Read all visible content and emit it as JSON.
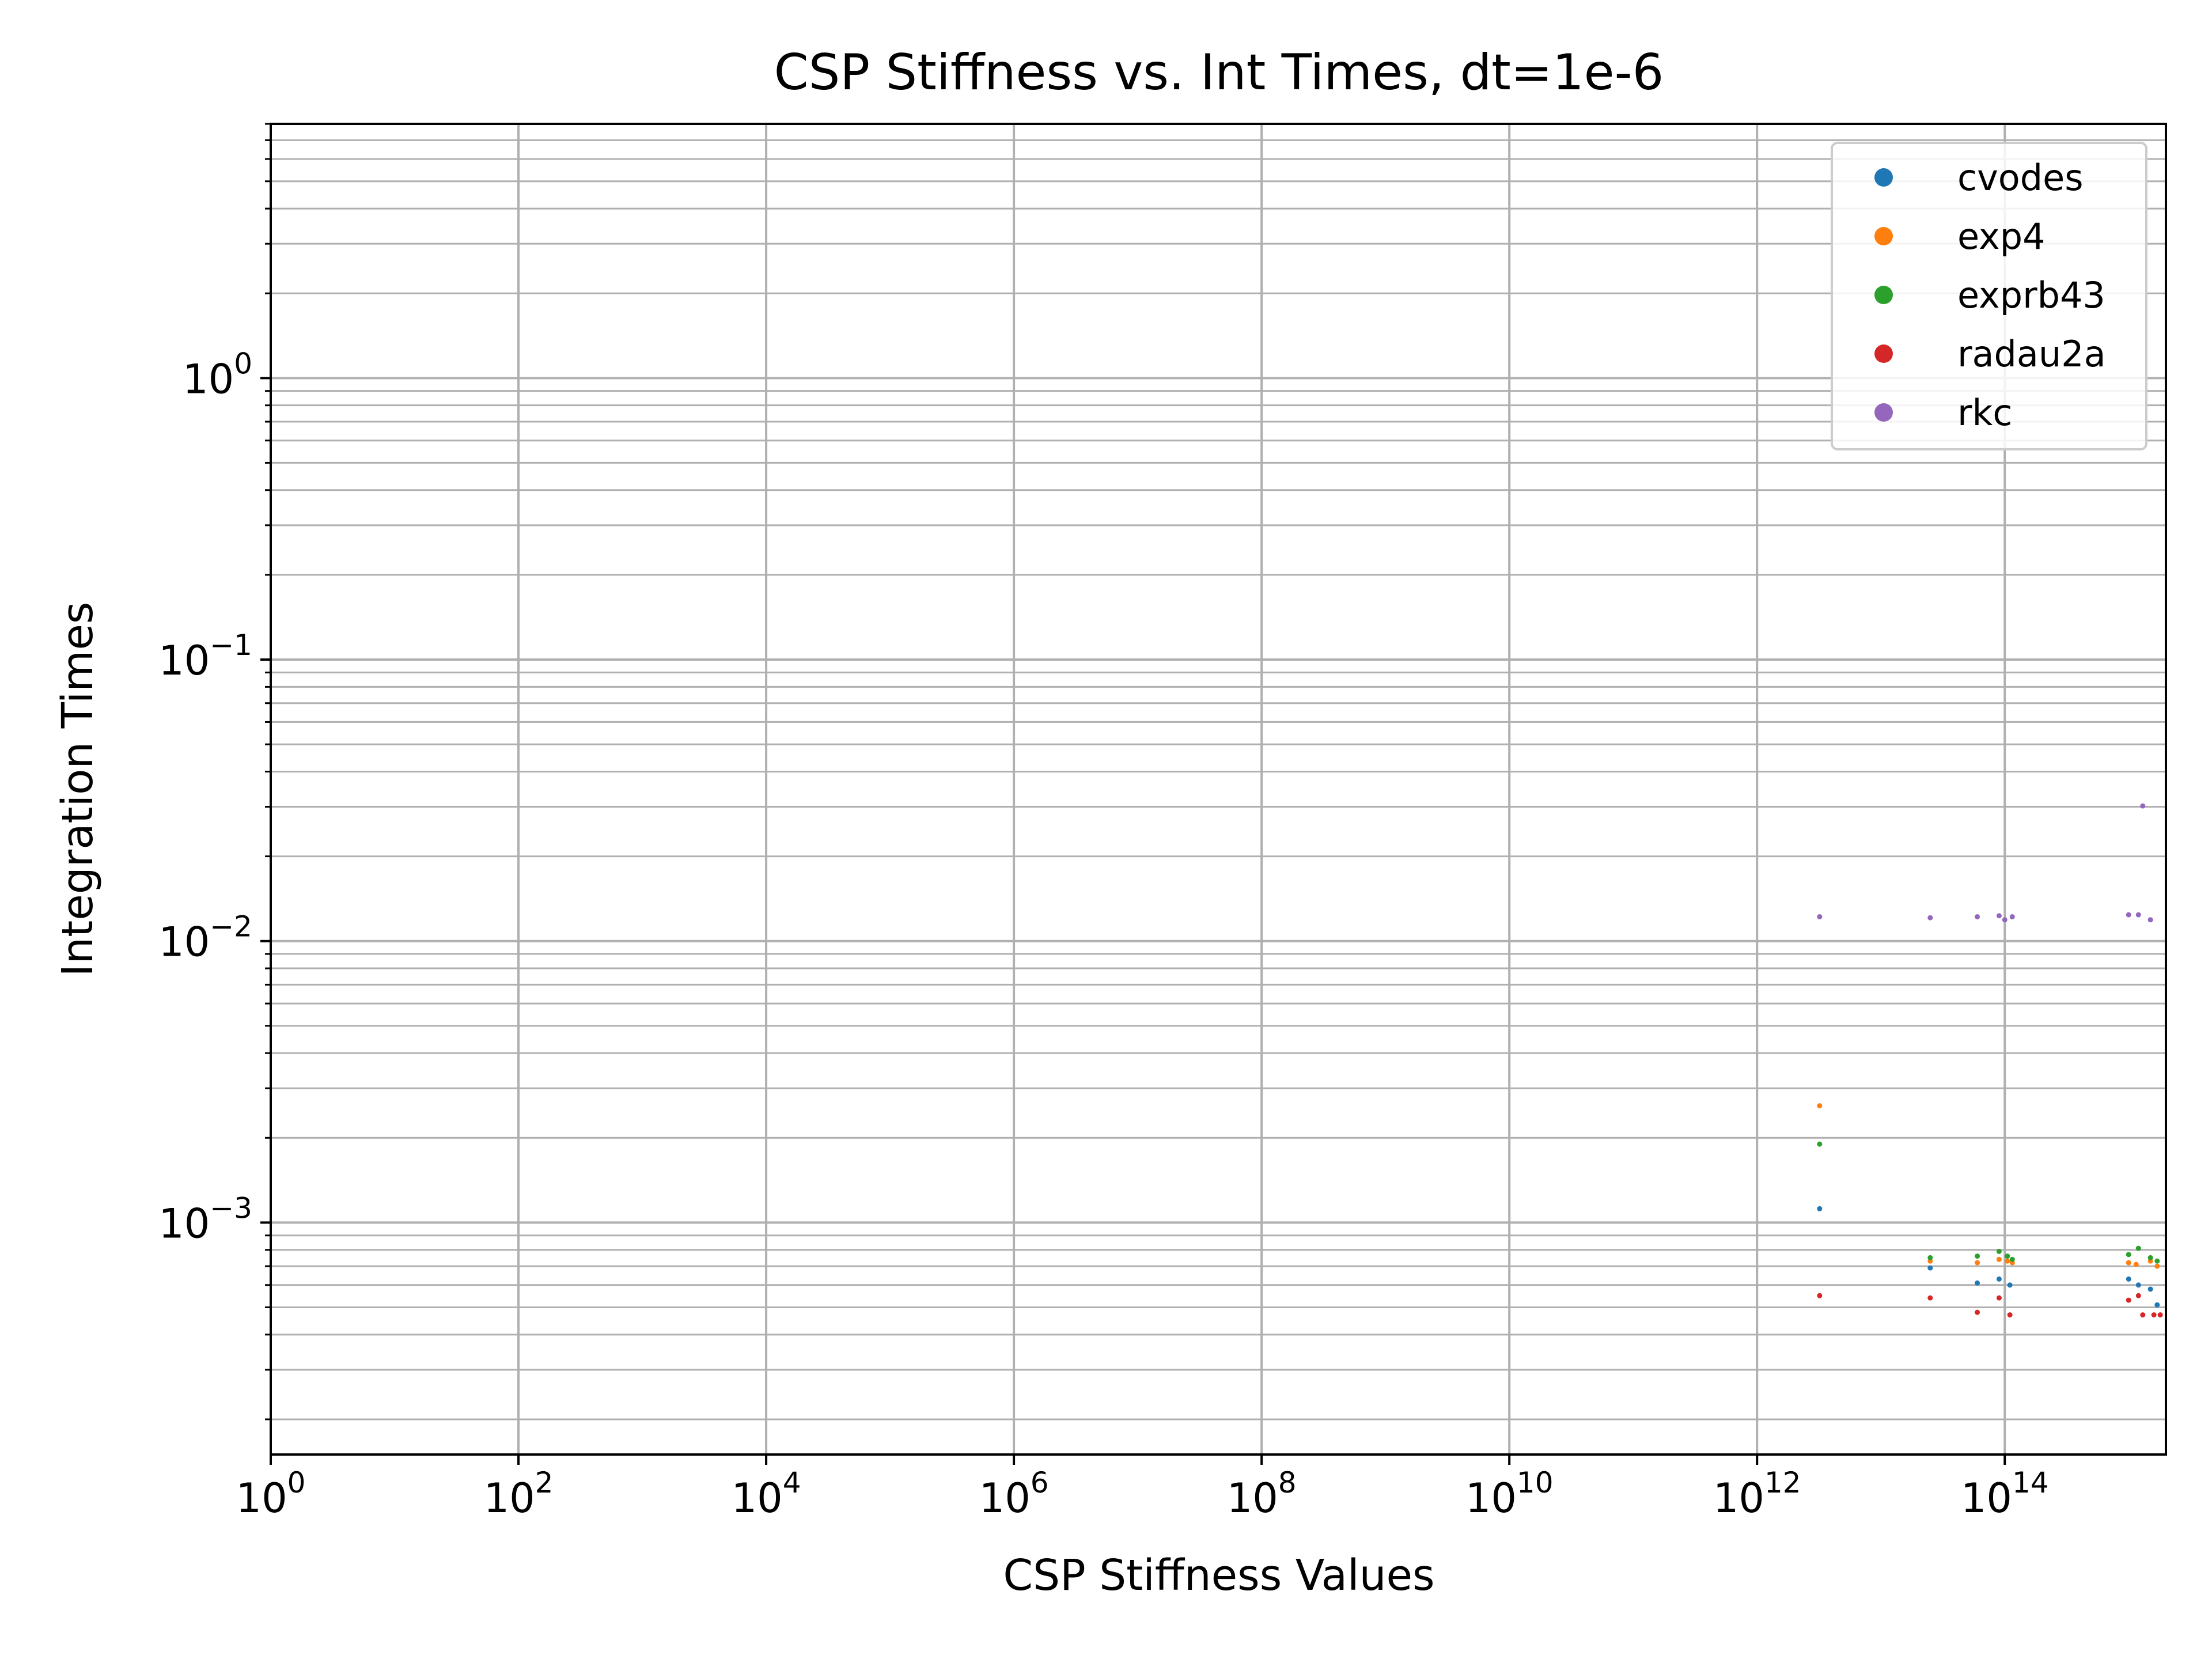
{
  "chart_data": {
    "type": "scatter",
    "title": "CSP Stiffness vs. Int Times, dt=1e-6",
    "xlabel": "CSP Stiffness Values",
    "ylabel": "Integration Times",
    "xscale": "log",
    "yscale": "log",
    "xlim": [
      1,
      2000000000000000.0
    ],
    "ylim": [
      0.00015,
      8
    ],
    "grid": true,
    "legend_position": "top-right",
    "x_ticks": [
      {
        "value": 1,
        "base": "10",
        "exp": "0"
      },
      {
        "value": 100,
        "base": "10",
        "exp": "2"
      },
      {
        "value": 10000,
        "base": "10",
        "exp": "4"
      },
      {
        "value": 1000000,
        "base": "10",
        "exp": "6"
      },
      {
        "value": 100000000,
        "base": "10",
        "exp": "8"
      },
      {
        "value": 10000000000,
        "base": "10",
        "exp": "10"
      },
      {
        "value": 1000000000000,
        "base": "10",
        "exp": "12"
      },
      {
        "value": 100000000000000,
        "base": "10",
        "exp": "14"
      }
    ],
    "y_ticks": [
      {
        "value": 0.001,
        "base": "10",
        "exp": "−3"
      },
      {
        "value": 0.01,
        "base": "10",
        "exp": "−2"
      },
      {
        "value": 0.1,
        "base": "10",
        "exp": "−1"
      },
      {
        "value": 1,
        "base": "10",
        "exp": "0"
      }
    ],
    "series": [
      {
        "name": "cvodes",
        "color": "#1f77b4",
        "points": [
          [
            3200000000000.0,
            0.00112
          ],
          [
            25000000000000.0,
            0.00069
          ],
          [
            60000000000000.0,
            0.00061
          ],
          [
            90000000000000.0,
            0.00063
          ],
          [
            110000000000000.0,
            0.0006
          ],
          [
            1000000000000000.0,
            0.00063
          ],
          [
            1200000000000000.0,
            0.0006
          ],
          [
            1500000000000000.0,
            0.00058
          ],
          [
            1700000000000000.0,
            0.00051
          ]
        ]
      },
      {
        "name": "exp4",
        "color": "#ff7f0e",
        "points": [
          [
            3200000000000.0,
            0.0026
          ],
          [
            25000000000000.0,
            0.00073
          ],
          [
            60000000000000.0,
            0.00072
          ],
          [
            90000000000000.0,
            0.00074
          ],
          [
            105000000000000.0,
            0.00073
          ],
          [
            115000000000000.0,
            0.00072
          ],
          [
            1000000000000000.0,
            0.00072
          ],
          [
            1150000000000000.0,
            0.00071
          ],
          [
            1500000000000000.0,
            0.00073
          ],
          [
            1700000000000000.0,
            0.0007
          ]
        ]
      },
      {
        "name": "exprb43",
        "color": "#2ca02c",
        "points": [
          [
            3200000000000.0,
            0.0019
          ],
          [
            25000000000000.0,
            0.00075
          ],
          [
            60000000000000.0,
            0.00076
          ],
          [
            90000000000000.0,
            0.00079
          ],
          [
            105000000000000.0,
            0.00076
          ],
          [
            115000000000000.0,
            0.00074
          ],
          [
            1000000000000000.0,
            0.00077
          ],
          [
            1200000000000000.0,
            0.00081
          ],
          [
            1500000000000000.0,
            0.00075
          ],
          [
            1700000000000000.0,
            0.00073
          ]
        ]
      },
      {
        "name": "radau2a",
        "color": "#d62728",
        "points": [
          [
            3200000000000.0,
            0.00055
          ],
          [
            25000000000000.0,
            0.00054
          ],
          [
            60000000000000.0,
            0.00048
          ],
          [
            90000000000000.0,
            0.00054
          ],
          [
            110000000000000.0,
            0.00047
          ],
          [
            1000000000000000.0,
            0.00053
          ],
          [
            1200000000000000.0,
            0.00055
          ],
          [
            1300000000000000.0,
            0.00047
          ],
          [
            1600000000000000.0,
            0.00047
          ],
          [
            1800000000000000.0,
            0.00047
          ]
        ]
      },
      {
        "name": "rkc",
        "color": "#9467bd",
        "points": [
          [
            3200000000000.0,
            0.0122
          ],
          [
            25000000000000.0,
            0.0121
          ],
          [
            60000000000000.0,
            0.0122
          ],
          [
            90000000000000.0,
            0.0123
          ],
          [
            100000000000000.0,
            0.0119
          ],
          [
            115000000000000.0,
            0.0122
          ],
          [
            1000000000000000.0,
            0.0124
          ],
          [
            1200000000000000.0,
            0.0124
          ],
          [
            1300000000000000.0,
            0.0302
          ],
          [
            1500000000000000.0,
            0.0119
          ]
        ]
      }
    ]
  }
}
